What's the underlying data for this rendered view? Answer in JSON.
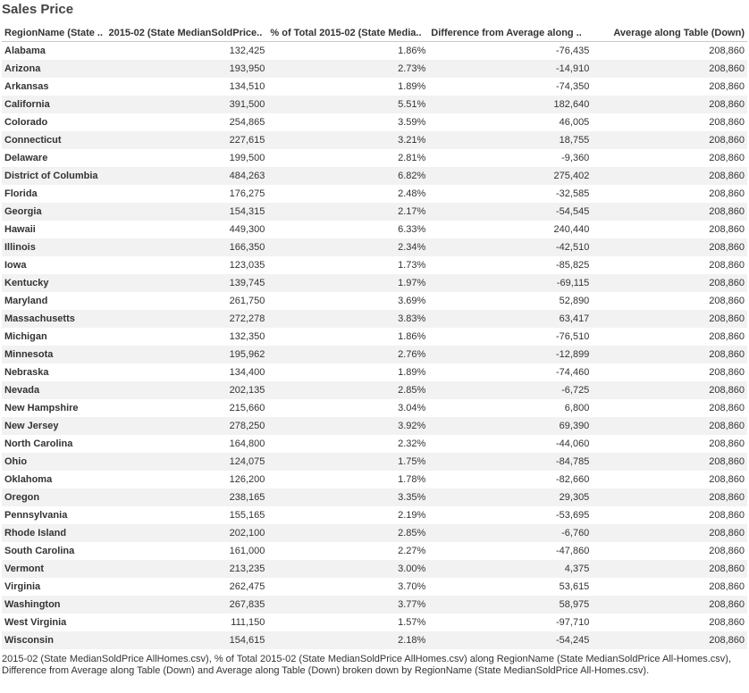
{
  "title": "Sales Price",
  "columns": [
    "RegionName (State ..",
    "2015-02 (State MedianSoldPrice..",
    "% of Total 2015-02 (State Media..",
    "Difference from Average along ..",
    "Average along Table (Down)"
  ],
  "caption": "2015-02 (State MedianSoldPrice AllHomes.csv), % of Total 2015-02 (State MedianSoldPrice AllHomes.csv) along RegionName (State MedianSoldPrice All-Homes.csv), Difference from Average along Table (Down) and Average along Table (Down) broken down by RegionName (State MedianSoldPrice All-Homes.csv).",
  "chart_data": {
    "type": "table",
    "title": "Sales Price",
    "rows": [
      [
        "Alabama",
        "132,425",
        "1.86%",
        "-76,435",
        "208,860"
      ],
      [
        "Arizona",
        "193,950",
        "2.73%",
        "-14,910",
        "208,860"
      ],
      [
        "Arkansas",
        "134,510",
        "1.89%",
        "-74,350",
        "208,860"
      ],
      [
        "California",
        "391,500",
        "5.51%",
        "182,640",
        "208,860"
      ],
      [
        "Colorado",
        "254,865",
        "3.59%",
        "46,005",
        "208,860"
      ],
      [
        "Connecticut",
        "227,615",
        "3.21%",
        "18,755",
        "208,860"
      ],
      [
        "Delaware",
        "199,500",
        "2.81%",
        "-9,360",
        "208,860"
      ],
      [
        "District of Columbia",
        "484,263",
        "6.82%",
        "275,402",
        "208,860"
      ],
      [
        "Florida",
        "176,275",
        "2.48%",
        "-32,585",
        "208,860"
      ],
      [
        "Georgia",
        "154,315",
        "2.17%",
        "-54,545",
        "208,860"
      ],
      [
        "Hawaii",
        "449,300",
        "6.33%",
        "240,440",
        "208,860"
      ],
      [
        "Illinois",
        "166,350",
        "2.34%",
        "-42,510",
        "208,860"
      ],
      [
        "Iowa",
        "123,035",
        "1.73%",
        "-85,825",
        "208,860"
      ],
      [
        "Kentucky",
        "139,745",
        "1.97%",
        "-69,115",
        "208,860"
      ],
      [
        "Maryland",
        "261,750",
        "3.69%",
        "52,890",
        "208,860"
      ],
      [
        "Massachusetts",
        "272,278",
        "3.83%",
        "63,417",
        "208,860"
      ],
      [
        "Michigan",
        "132,350",
        "1.86%",
        "-76,510",
        "208,860"
      ],
      [
        "Minnesota",
        "195,962",
        "2.76%",
        "-12,899",
        "208,860"
      ],
      [
        "Nebraska",
        "134,400",
        "1.89%",
        "-74,460",
        "208,860"
      ],
      [
        "Nevada",
        "202,135",
        "2.85%",
        "-6,725",
        "208,860"
      ],
      [
        "New Hampshire",
        "215,660",
        "3.04%",
        "6,800",
        "208,860"
      ],
      [
        "New Jersey",
        "278,250",
        "3.92%",
        "69,390",
        "208,860"
      ],
      [
        "North Carolina",
        "164,800",
        "2.32%",
        "-44,060",
        "208,860"
      ],
      [
        "Ohio",
        "124,075",
        "1.75%",
        "-84,785",
        "208,860"
      ],
      [
        "Oklahoma",
        "126,200",
        "1.78%",
        "-82,660",
        "208,860"
      ],
      [
        "Oregon",
        "238,165",
        "3.35%",
        "29,305",
        "208,860"
      ],
      [
        "Pennsylvania",
        "155,165",
        "2.19%",
        "-53,695",
        "208,860"
      ],
      [
        "Rhode Island",
        "202,100",
        "2.85%",
        "-6,760",
        "208,860"
      ],
      [
        "South Carolina",
        "161,000",
        "2.27%",
        "-47,860",
        "208,860"
      ],
      [
        "Vermont",
        "213,235",
        "3.00%",
        "4,375",
        "208,860"
      ],
      [
        "Virginia",
        "262,475",
        "3.70%",
        "53,615",
        "208,860"
      ],
      [
        "Washington",
        "267,835",
        "3.77%",
        "58,975",
        "208,860"
      ],
      [
        "West Virginia",
        "111,150",
        "1.57%",
        "-97,710",
        "208,860"
      ],
      [
        "Wisconsin",
        "154,615",
        "2.18%",
        "-54,245",
        "208,860"
      ]
    ]
  }
}
